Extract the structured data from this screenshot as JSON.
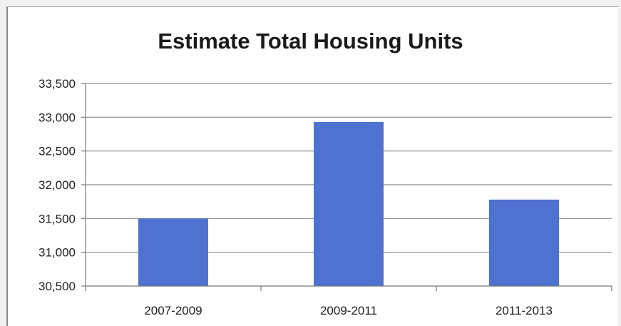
{
  "chart_data": {
    "type": "bar",
    "title": "Estimate Total Housing Units",
    "xlabel": "",
    "ylabel": "",
    "categories": [
      "2007-2009",
      "2009-2011",
      "2011-2013"
    ],
    "values": [
      31500,
      32930,
      31780
    ],
    "ylim": [
      30500,
      33500
    ],
    "yticks": [
      30500,
      31000,
      31500,
      32000,
      32500,
      33000,
      33500
    ],
    "ytick_labels": [
      "30,500",
      "31,000",
      "31,500",
      "32,000",
      "32,500",
      "33,000",
      "33,500"
    ],
    "grid": true,
    "legend": "none",
    "bar_color": "#4f72d1"
  }
}
